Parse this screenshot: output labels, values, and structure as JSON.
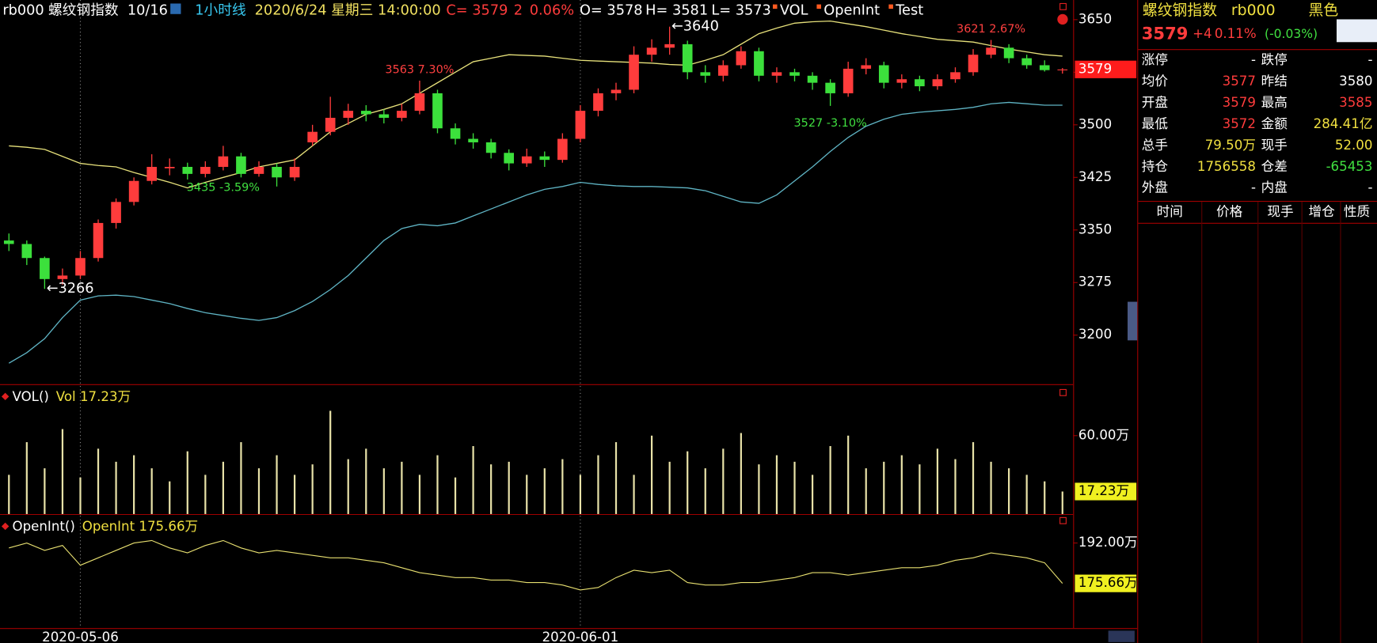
{
  "header": {
    "symbol": "rb000",
    "name": "螺纹钢指数",
    "page": "10/16",
    "period": "1小时线",
    "datetime": "2020/6/24 星期三 14:00:00",
    "close": "C= 3579",
    "change": "2",
    "change_pct": "0.06%",
    "open": "O= 3578",
    "high": "H= 3581",
    "low": "L= 3573",
    "indicators": [
      "VOL",
      "OpenInt",
      "Test"
    ]
  },
  "chart_data": [
    {
      "type": "candlestick",
      "categories": [
        null,
        null,
        null,
        null,
        "2020-05-06",
        null,
        null,
        null,
        null,
        null,
        null,
        null,
        null,
        null,
        null,
        null,
        null,
        null,
        null,
        null,
        null,
        null,
        null,
        null,
        null,
        null,
        null,
        null,
        null,
        null,
        null,
        null,
        "2020-06-01",
        null,
        null,
        null,
        null,
        null,
        null,
        null,
        null,
        null,
        null,
        null,
        null,
        null,
        null,
        null,
        null,
        null,
        null,
        null,
        null,
        null,
        null,
        null,
        null,
        null,
        null,
        null
      ],
      "candles": [
        [
          3335,
          3345,
          3320,
          3330
        ],
        [
          3330,
          3335,
          3300,
          3310
        ],
        [
          3310,
          3312,
          3266,
          3280
        ],
        [
          3280,
          3295,
          3272,
          3285
        ],
        [
          3285,
          3320,
          3280,
          3310
        ],
        [
          3310,
          3365,
          3305,
          3360
        ],
        [
          3360,
          3395,
          3352,
          3390
        ],
        [
          3390,
          3425,
          3385,
          3420
        ],
        [
          3420,
          3458,
          3415,
          3440
        ],
        [
          3438,
          3452,
          3428,
          3440
        ],
        [
          3440,
          3446,
          3422,
          3430
        ],
        [
          3430,
          3448,
          3425,
          3440
        ],
        [
          3440,
          3470,
          3435,
          3455
        ],
        [
          3455,
          3460,
          3425,
          3430
        ],
        [
          3430,
          3448,
          3426,
          3440
        ],
        [
          3440,
          3445,
          3412,
          3425
        ],
        [
          3425,
          3452,
          3420,
          3440
        ],
        [
          3475,
          3500,
          3470,
          3490
        ],
        [
          3490,
          3540,
          3485,
          3510
        ],
        [
          3510,
          3530,
          3500,
          3520
        ],
        [
          3520,
          3528,
          3505,
          3515
        ],
        [
          3515,
          3522,
          3502,
          3510
        ],
        [
          3510,
          3530,
          3505,
          3520
        ],
        [
          3520,
          3563,
          3515,
          3545
        ],
        [
          3545,
          3550,
          3488,
          3495
        ],
        [
          3495,
          3502,
          3472,
          3480
        ],
        [
          3480,
          3488,
          3466,
          3475
        ],
        [
          3475,
          3480,
          3452,
          3460
        ],
        [
          3460,
          3465,
          3435,
          3445
        ],
        [
          3445,
          3466,
          3440,
          3455
        ],
        [
          3455,
          3462,
          3440,
          3450
        ],
        [
          3450,
          3488,
          3446,
          3480
        ],
        [
          3480,
          3528,
          3475,
          3520
        ],
        [
          3520,
          3552,
          3512,
          3545
        ],
        [
          3545,
          3560,
          3535,
          3550
        ],
        [
          3550,
          3612,
          3545,
          3600
        ],
        [
          3600,
          3622,
          3590,
          3610
        ],
        [
          3610,
          3640,
          3600,
          3615
        ],
        [
          3615,
          3620,
          3565,
          3575
        ],
        [
          3575,
          3585,
          3560,
          3570
        ],
        [
          3570,
          3592,
          3562,
          3585
        ],
        [
          3585,
          3612,
          3580,
          3605
        ],
        [
          3605,
          3610,
          3562,
          3570
        ],
        [
          3570,
          3582,
          3560,
          3575
        ],
        [
          3575,
          3580,
          3562,
          3570
        ],
        [
          3570,
          3575,
          3550,
          3560
        ],
        [
          3560,
          3565,
          3527,
          3545
        ],
        [
          3545,
          3590,
          3540,
          3580
        ],
        [
          3580,
          3595,
          3572,
          3585
        ],
        [
          3585,
          3590,
          3552,
          3560
        ],
        [
          3560,
          3572,
          3552,
          3565
        ],
        [
          3565,
          3570,
          3548,
          3555
        ],
        [
          3555,
          3572,
          3550,
          3565
        ],
        [
          3565,
          3582,
          3560,
          3575
        ],
        [
          3575,
          3608,
          3570,
          3600
        ],
        [
          3600,
          3621,
          3595,
          3610
        ],
        [
          3610,
          3615,
          3588,
          3595
        ],
        [
          3595,
          3600,
          3580,
          3585
        ],
        [
          3585,
          3592,
          3576,
          3578
        ],
        [
          3578,
          3581,
          3573,
          3579
        ]
      ],
      "up_color": "#ff3c3c",
      "down_color": "#3ce03c",
      "series": [
        {
          "color": "#e6e07a",
          "values": [
            3470,
            3468,
            3465,
            3455,
            3445,
            3442,
            3440,
            3432,
            3425,
            3418,
            3410,
            3418,
            3425,
            3432,
            3440,
            3445,
            3450,
            3470,
            3490,
            3502,
            3515,
            3522,
            3530,
            3545,
            3560,
            3575,
            3590,
            3595,
            3600,
            3599,
            3598,
            3595,
            3592,
            3591,
            3590,
            3589,
            3588,
            3586,
            3585,
            3592,
            3600,
            3615,
            3630,
            3638,
            3645,
            3647,
            3648,
            3644,
            3640,
            3635,
            3630,
            3626,
            3622,
            3620,
            3618,
            3613,
            3608,
            3604,
            3600,
            3598
          ]
        },
        {
          "color": "#5fb4c4",
          "values": [
            3160,
            3175,
            3195,
            3225,
            3250,
            3256,
            3257,
            3255,
            3250,
            3245,
            3238,
            3232,
            3228,
            3224,
            3221,
            3225,
            3235,
            3248,
            3265,
            3285,
            3310,
            3335,
            3352,
            3358,
            3356,
            3360,
            3370,
            3380,
            3390,
            3400,
            3408,
            3412,
            3418,
            3415,
            3413,
            3412,
            3412,
            3411,
            3410,
            3406,
            3398,
            3390,
            3388,
            3400,
            3420,
            3440,
            3462,
            3482,
            3498,
            3508,
            3515,
            3518,
            3520,
            3522,
            3525,
            3530,
            3532,
            3530,
            3528,
            3528
          ]
        }
      ],
      "ylim": [
        3130,
        3678
      ],
      "yticks": [
        3650,
        3575,
        3500,
        3425,
        3350,
        3275,
        3200
      ],
      "annotations": [
        {
          "label": "←3266",
          "value": 3266,
          "color": "#ffffff"
        },
        {
          "label": "3563 7.30%",
          "value": 3563,
          "color": "#ff4040"
        },
        {
          "label": "3435 -3.59%",
          "value": 3435,
          "color": "#40e040"
        },
        {
          "label": "←3640",
          "value": 3640,
          "color": "#ffffff"
        },
        {
          "label": "3527 -3.10%",
          "value": 3527,
          "color": "#40e040"
        },
        {
          "label": "3621 2.67%",
          "value": 3621,
          "color": "#ff4040"
        }
      ],
      "price_tag_color": "#ff1c1c"
    },
    {
      "type": "bar",
      "title": "VOL()",
      "legend": "Vol 17.23万",
      "color": "#e8e2a8",
      "values": [
        30,
        55,
        35,
        65,
        28,
        50,
        40,
        45,
        35,
        25,
        48,
        30,
        40,
        55,
        35,
        45,
        30,
        38,
        79,
        42,
        50,
        35,
        40,
        30,
        45,
        28,
        52,
        38,
        40,
        30,
        35,
        42,
        30,
        45,
        55,
        30,
        60,
        40,
        48,
        35,
        50,
        62,
        38,
        45,
        40,
        30,
        52,
        60,
        35,
        40,
        45,
        38,
        50,
        42,
        55,
        40,
        35,
        30,
        25,
        17.23
      ],
      "ylim": [
        0,
        98
      ],
      "yticks": [
        {
          "value": 60,
          "label": "60.00万"
        }
      ],
      "last_label": "17.23万"
    },
    {
      "type": "line",
      "title": "OpenInt()",
      "legend": "OpenInt 175.66万",
      "color": "#e8e070",
      "values": [
        190,
        192,
        189,
        191,
        183,
        186,
        189,
        192,
        193,
        190,
        188,
        191,
        193,
        190,
        188,
        189,
        188,
        187,
        186,
        186,
        185,
        184,
        182,
        180,
        179,
        178,
        178,
        177,
        177,
        176,
        176,
        175,
        173,
        174,
        178,
        181,
        180,
        181,
        176,
        175,
        175,
        176,
        176,
        177,
        178,
        180,
        180,
        179,
        180,
        181,
        182,
        182,
        183,
        185,
        186,
        188,
        187,
        186,
        184,
        175.66
      ],
      "ylim": [
        157.6,
        203
      ],
      "yticks": [
        {
          "value": 192,
          "label": "192.00万"
        }
      ],
      "last_label": "175.66万"
    }
  ],
  "quote_panel": {
    "title": "螺纹钢指数",
    "code": "rb000",
    "sector": "黑色",
    "price": "3579",
    "change": "+4",
    "change_pct": "0.11%",
    "change_pct2": "(-0.03%)",
    "rows": [
      [
        "涨停",
        "-",
        "跌停",
        "-"
      ],
      [
        "均价",
        "3577",
        "昨结",
        "3580"
      ],
      [
        "开盘",
        "3579",
        "最高",
        "3585"
      ],
      [
        "最低",
        "3572",
        "金额",
        "284.41亿"
      ],
      [
        "总手",
        "79.50万",
        "现手",
        "52.00"
      ],
      [
        "持仓",
        "1756558",
        "仓差",
        "-65453"
      ],
      [
        "外盘",
        "-",
        "内盘",
        "-"
      ]
    ],
    "trade_header": [
      "时间",
      "价格",
      "现手",
      "增仓",
      "性质"
    ]
  }
}
